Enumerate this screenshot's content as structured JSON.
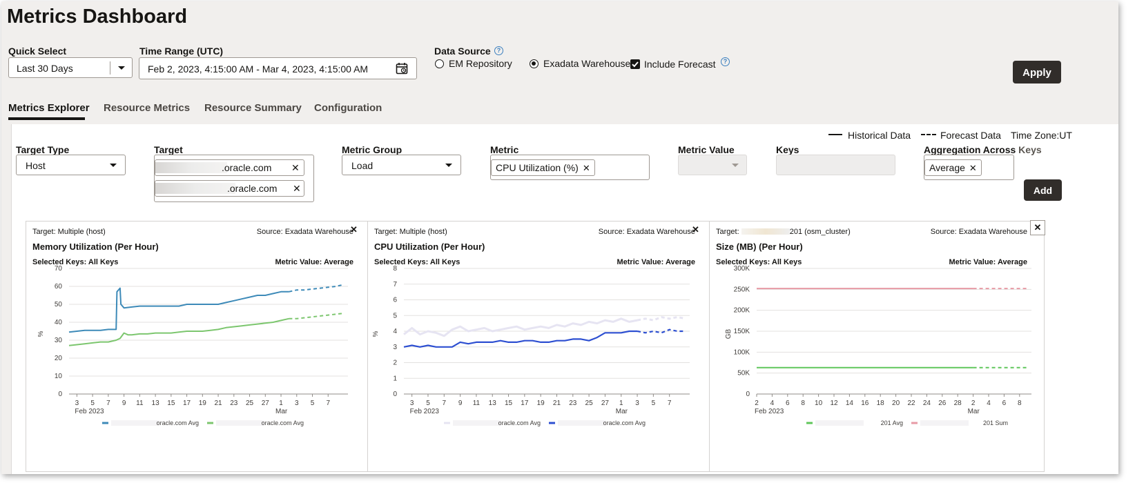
{
  "page_title": "Metrics Dashboard",
  "quick_select": {
    "label": "Quick Select",
    "value": "Last 30 Days"
  },
  "time_range": {
    "label": "Time Range (UTC)",
    "value": "Feb 2, 2023, 4:15:00 AM - Mar 4, 2023, 4:15:00 AM"
  },
  "data_source": {
    "label": "Data Source",
    "options": [
      "EM Repository",
      "Exadata Warehouse"
    ],
    "selected": "Exadata Warehouse",
    "include_forecast_label": "Include Forecast",
    "include_forecast_checked": true
  },
  "apply_label": "Apply",
  "tabs": [
    {
      "label": "Metrics Explorer",
      "active": true
    },
    {
      "label": "Resource Metrics",
      "active": false
    },
    {
      "label": "Resource Summary",
      "active": false
    },
    {
      "label": "Configuration",
      "active": false
    }
  ],
  "legend_top": {
    "historical": "Historical Data",
    "forecast": "Forecast Data",
    "timezone": "Time Zone:UT"
  },
  "filters": {
    "target_type": {
      "label": "Target Type",
      "value": "Host"
    },
    "target": {
      "label": "Target",
      "chips": [
        ".oracle.com",
        ".oracle.com"
      ]
    },
    "metric_group": {
      "label": "Metric Group",
      "value": "Load"
    },
    "metric": {
      "label": "Metric",
      "chip": "CPU Utilization (%)"
    },
    "metric_value": {
      "label": "Metric Value"
    },
    "keys": {
      "label": "Keys"
    },
    "aggregation": {
      "label": "Aggregation Across",
      "label_suffix": "Keys",
      "chip": "Average"
    },
    "add_label": "Add"
  },
  "cards": [
    {
      "target": "Target: Multiple (host)",
      "source": "Source: Exadata Warehouse",
      "title": "Memory Utilization (Per Hour)",
      "selected_keys": "Selected Keys: All Keys",
      "metric_value": "Metric Value: Average",
      "y_label": "%",
      "y_ticks": [
        "0",
        "10",
        "20",
        "30",
        "40",
        "50",
        "60",
        "70"
      ],
      "x_ticks": [
        "3",
        "5",
        "7",
        "9",
        "11",
        "13",
        "15",
        "17",
        "19",
        "21",
        "23",
        "25",
        "27",
        "1",
        "3",
        "5",
        "7"
      ],
      "x_sub_left": "Feb 2023",
      "x_sub_right": "Mar",
      "legend": [
        "oracle.com Avg",
        "oracle.com Avg"
      ]
    },
    {
      "target": "Target: Multiple (host)",
      "source": "Source: Exadata Warehouse",
      "title": "CPU Utilization (Per Hour)",
      "selected_keys": "Selected Keys: All Keys",
      "metric_value": "Metric Value: Average",
      "y_label": "%",
      "y_ticks": [
        "0",
        "1",
        "2",
        "3",
        "4",
        "5",
        "6",
        "7",
        "8"
      ],
      "x_ticks": [
        "3",
        "5",
        "7",
        "9",
        "11",
        "13",
        "15",
        "17",
        "19",
        "21",
        "23",
        "25",
        "27",
        "1",
        "3",
        "5",
        "7"
      ],
      "x_sub_left": "Feb 2023",
      "x_sub_right": "Mar",
      "legend": [
        "oracle.com Avg",
        "oracle.com Avg"
      ]
    },
    {
      "target": "Target:",
      "target_suffix": "201 (osm_cluster)",
      "source": "Source: Exadata Warehouse",
      "title": "Size (MB) (Per Hour)",
      "selected_keys": "Selected Keys: All Keys",
      "metric_value": "Metric Value: Average",
      "y_label": "GB",
      "y_ticks": [
        "0",
        "50K",
        "100K",
        "150K",
        "200K",
        "250K",
        "300K"
      ],
      "x_ticks": [
        "2",
        "4",
        "6",
        "8",
        "10",
        "12",
        "14",
        "16",
        "18",
        "20",
        "22",
        "24",
        "26",
        "28",
        "2",
        "4",
        "6",
        "8"
      ],
      "x_sub_left": "Feb 2023",
      "x_sub_right": "Mar",
      "legend": [
        "201 Avg",
        "201 Sum"
      ]
    }
  ],
  "chart_data": [
    {
      "type": "line",
      "title": "Memory Utilization (Per Hour)",
      "ylabel": "%",
      "ylim": [
        0,
        70
      ],
      "x_unit": "day of Feb 2023 (29+ = Mar)",
      "series": [
        {
          "name": "oracle.com Avg",
          "color": "#3d8ab8",
          "x": [
            2,
            3,
            4,
            5,
            6,
            7,
            8,
            8.1,
            8.5,
            8.6,
            9,
            10,
            11,
            12,
            13,
            14,
            15,
            16,
            17,
            18,
            19,
            20,
            21,
            22,
            23,
            24,
            25,
            26,
            27,
            28,
            29,
            30,
            31,
            32,
            33,
            34,
            35,
            36,
            37
          ],
          "y": [
            34.5,
            35,
            35.5,
            35.5,
            35.5,
            36,
            36,
            57,
            59,
            50,
            48,
            48.5,
            49,
            49,
            49,
            49,
            49,
            49,
            50,
            50,
            50,
            50,
            50,
            51,
            52,
            53,
            54,
            55,
            55,
            56,
            57,
            57,
            58,
            58,
            58.5,
            59,
            59.5,
            60,
            61
          ],
          "forecast_from": 30
        },
        {
          "name": "oracle.com Avg",
          "color": "#7cc66e",
          "x": [
            2,
            3,
            4,
            5,
            6,
            7,
            8,
            8.5,
            9,
            9.5,
            10,
            11,
            12,
            13,
            14,
            15,
            16,
            17,
            18,
            19,
            20,
            21,
            22,
            23,
            24,
            25,
            26,
            27,
            28,
            29,
            30,
            31,
            32,
            33,
            34,
            35,
            36,
            37
          ],
          "y": [
            27,
            27.5,
            28,
            28.5,
            29,
            29,
            30,
            31,
            34,
            33,
            33,
            33.5,
            33.5,
            34,
            34,
            34,
            34.5,
            35,
            35,
            35,
            35.5,
            36,
            37,
            37.5,
            38,
            38.5,
            39,
            39.5,
            40,
            41,
            42,
            42,
            42.5,
            43,
            43.5,
            44,
            44.5,
            45
          ],
          "forecast_from": 30
        }
      ]
    },
    {
      "type": "line",
      "title": "CPU Utilization (Per Hour)",
      "ylabel": "%",
      "ylim": [
        0,
        8
      ],
      "series": [
        {
          "name": "oracle.com Avg",
          "color": "#e6e4f2",
          "x": [
            2,
            3,
            4,
            5,
            6,
            7,
            8,
            9,
            10,
            11,
            12,
            13,
            14,
            15,
            16,
            17,
            18,
            19,
            20,
            21,
            22,
            23,
            24,
            25,
            26,
            27,
            28,
            29,
            30,
            31,
            32,
            33,
            34,
            35,
            36,
            37
          ],
          "y": [
            3.8,
            4.2,
            3.8,
            4.0,
            3.9,
            3.7,
            4.1,
            4.3,
            4.0,
            4.1,
            4.2,
            4.0,
            4.1,
            4.2,
            4.3,
            4.1,
            4.2,
            4.3,
            4.2,
            4.4,
            4.3,
            4.5,
            4.4,
            4.6,
            4.5,
            4.7,
            4.6,
            4.8,
            4.6,
            4.7,
            4.8,
            4.7,
            4.9,
            4.8,
            4.9,
            4.8
          ],
          "forecast_from": 31
        },
        {
          "name": "oracle.com Avg",
          "color": "#2d4fd1",
          "x": [
            2,
            3,
            4,
            5,
            6,
            7,
            8,
            9,
            10,
            11,
            12,
            13,
            14,
            15,
            16,
            17,
            18,
            19,
            20,
            21,
            22,
            23,
            24,
            25,
            26,
            27,
            28,
            29,
            30,
            31,
            32,
            33,
            34,
            35,
            36,
            37
          ],
          "y": [
            3.0,
            3.1,
            3.0,
            3.1,
            3.0,
            3.0,
            3.0,
            3.3,
            3.2,
            3.3,
            3.3,
            3.3,
            3.4,
            3.3,
            3.3,
            3.4,
            3.4,
            3.3,
            3.3,
            3.4,
            3.4,
            3.5,
            3.5,
            3.4,
            3.6,
            3.9,
            3.9,
            3.9,
            4.0,
            4.0,
            3.9,
            4.0,
            3.9,
            4.1,
            4.0,
            4.0
          ],
          "forecast_from": 31
        }
      ]
    },
    {
      "type": "line",
      "title": "Size (MB) (Per Hour)",
      "ylabel": "GB",
      "ylim": [
        0,
        300000
      ],
      "series": [
        {
          "name": "201 Avg",
          "color": "#5fc65a",
          "x": [
            2,
            30,
            37
          ],
          "y": [
            63000,
            63000,
            63000
          ],
          "forecast_from": 30
        },
        {
          "name": "201 Sum",
          "color": "#e79aa5",
          "x": [
            2,
            30,
            37
          ],
          "y": [
            252000,
            252000,
            252000
          ],
          "forecast_from": 30
        }
      ]
    }
  ]
}
